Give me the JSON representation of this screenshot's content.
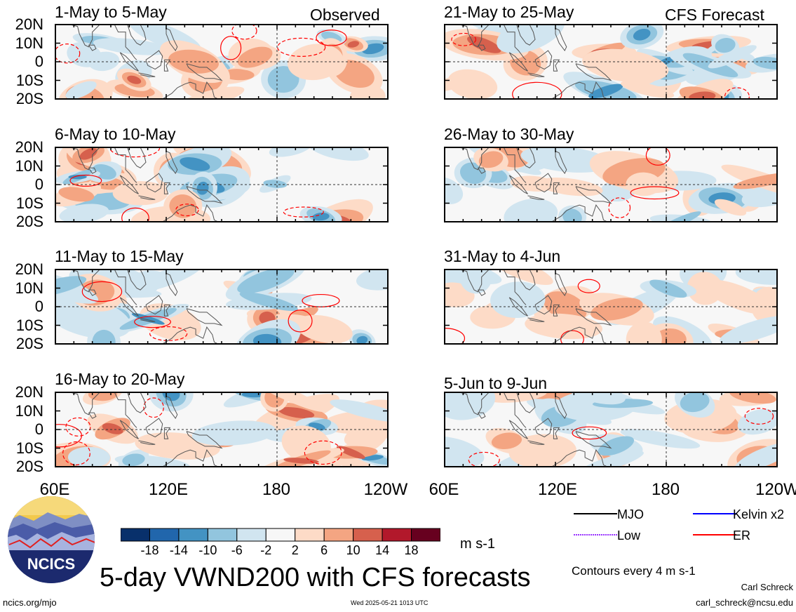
{
  "figure_title": "5-day VWND200 with CFS forecasts",
  "observed_label": "Observed",
  "forecast_label": "CFS Forecast",
  "panels_left": [
    {
      "title": "1-May to 5-May"
    },
    {
      "title": "6-May to 10-May"
    },
    {
      "title": "11-May to 15-May"
    },
    {
      "title": "16-May to 20-May"
    }
  ],
  "panels_right": [
    {
      "title": "21-May to 25-May"
    },
    {
      "title": "26-May to 30-May"
    },
    {
      "title": "31-May to 4-Jun"
    },
    {
      "title": "5-Jun to 9-Jun"
    }
  ],
  "lat_labels": [
    "20N",
    "10N",
    "0",
    "10S",
    "20S"
  ],
  "lon_labels": [
    "60E",
    "120E",
    "180",
    "120W"
  ],
  "colorbar": {
    "labels": [
      "-18",
      "-14",
      "-10",
      "-6",
      "-2",
      "2",
      "6",
      "10",
      "14",
      "18"
    ],
    "colors": [
      "#08306b",
      "#2166ac",
      "#4393c3",
      "#92c5de",
      "#d1e5f0",
      "#f7f7f7",
      "#fddbc7",
      "#f4a582",
      "#d6604d",
      "#b2182b",
      "#67001f"
    ],
    "units": "m s-1"
  },
  "legend": [
    {
      "label": "MJO",
      "color": "#000000"
    },
    {
      "label": "Kelvin x2",
      "color": "#0000ff"
    },
    {
      "label": "Low",
      "color": "#9933ff"
    },
    {
      "label": "ER",
      "color": "#ff0000"
    }
  ],
  "contour_note": "Contours every 4 m s-1",
  "logo_text": "NCICS",
  "author": "Carl Schreck",
  "email": "carl_schreck@ncsu.edu",
  "website": "ncics.org/mjo",
  "timestamp": "Wed 2025-05-21 1013 UTC"
}
